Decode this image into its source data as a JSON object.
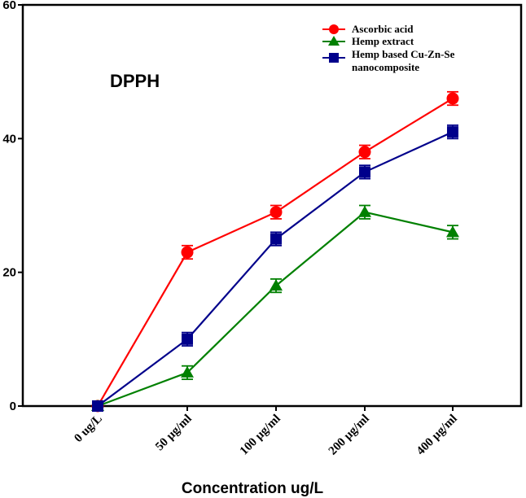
{
  "chart_data": {
    "type": "line",
    "title": "",
    "annotation": "DPPH",
    "xlabel": "Concentration ug/L",
    "ylabel": "",
    "categories": [
      "0 ug/L",
      "50 µg/ml",
      "100 µg/ml",
      "200 µg/ml",
      "400 µg/ml"
    ],
    "ylim": [
      0,
      60
    ],
    "yticks": [
      "0",
      "20",
      "40",
      "60"
    ],
    "grid": false,
    "legend_position": "top-right",
    "series": [
      {
        "name": "Ascorbic acid",
        "color": "#ff0000",
        "marker": "circle",
        "values": [
          0,
          23,
          29,
          38,
          46
        ],
        "errors": [
          0,
          1,
          1,
          1,
          1
        ]
      },
      {
        "name": "Hemp extract",
        "color": "#008000",
        "marker": "triangle",
        "values": [
          0,
          5,
          18,
          29,
          26
        ],
        "errors": [
          0,
          1,
          1,
          1,
          1
        ]
      },
      {
        "name": "Hemp based Cu-Zn-Se nanocomposite",
        "color": "#00008b",
        "marker": "square",
        "values": [
          0,
          10,
          25,
          35,
          41
        ],
        "errors": [
          0,
          1,
          1,
          1,
          1
        ]
      }
    ]
  }
}
